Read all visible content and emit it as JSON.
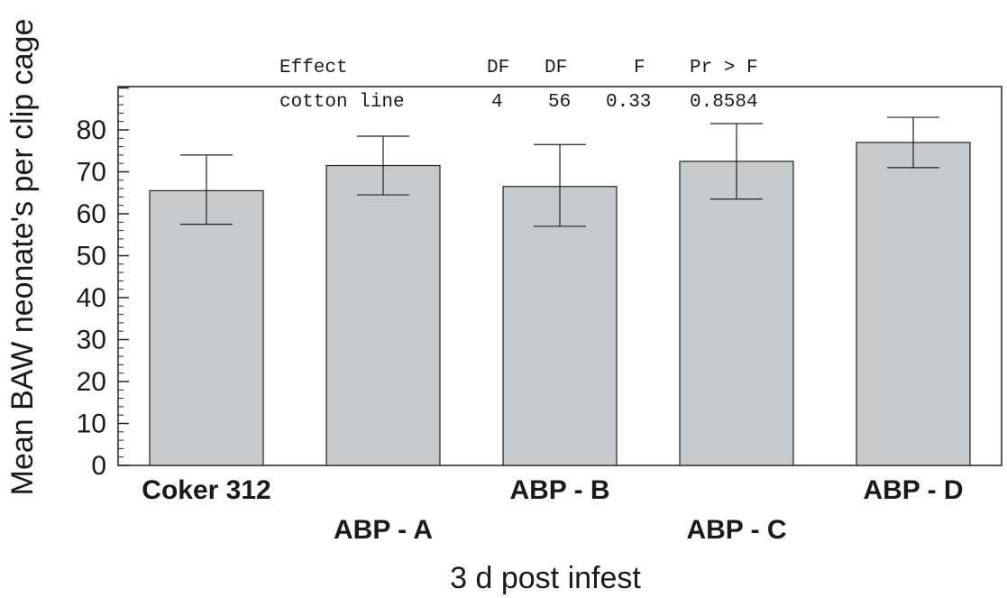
{
  "chart_data": {
    "type": "bar",
    "categories": [
      "Coker 312",
      "ABP - A",
      "ABP - B",
      "ABP - C",
      "ABP - D"
    ],
    "values": [
      65.5,
      71.5,
      66.5,
      72.5,
      77.0
    ],
    "error_low": [
      57.5,
      64.5,
      57.0,
      63.5,
      71.0
    ],
    "error_high": [
      74.0,
      78.5,
      76.5,
      81.5,
      83.0
    ],
    "ylim": [
      0,
      90
    ],
    "yticks": [
      "0",
      "10",
      "20",
      "30",
      "40",
      "50",
      "60",
      "70",
      "80"
    ],
    "xlabel": "3 d post infest",
    "ylabel": "Mean BAW neonate's per clip cage",
    "bar_color": "#c8c9cb",
    "anova": {
      "header": [
        "Effect",
        "DF",
        "DF",
        "F",
        "Pr > F"
      ],
      "row": [
        "cotton line",
        "4",
        "56",
        "0.33",
        "0.8584"
      ]
    }
  }
}
